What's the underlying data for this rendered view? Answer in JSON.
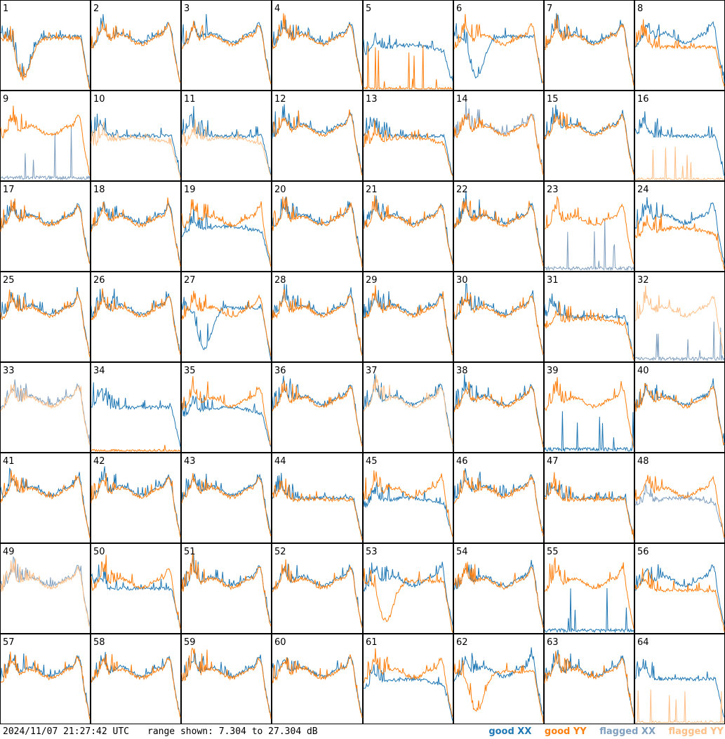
{
  "footer": {
    "timestamp": "2024/11/07 21:27:42 UTC",
    "range": "range shown: 7.304 to 27.304 dB"
  },
  "legend": [
    {
      "label": "good XX",
      "color": "#1f77b4"
    },
    {
      "label": "good YY",
      "color": "#ff7f0e"
    },
    {
      "label": "flagged XX",
      "color": "#7f9fbf"
    },
    {
      "label": "flagged YY",
      "color": "#ffbf87"
    }
  ],
  "chart_data": {
    "type": "line",
    "layout": "small multiples, 8x8 grid",
    "ylim": [
      7.304,
      27.304
    ],
    "yunit": "dB",
    "series_names": [
      "XX",
      "YY"
    ],
    "panels": [
      {
        "id": "1",
        "xx": "good",
        "yy": "good",
        "shape": {
          "xx": "dip",
          "yy": "dip"
        }
      },
      {
        "id": "2",
        "xx": "good",
        "yy": "good",
        "shape": {
          "xx": "normal",
          "yy": "normal"
        }
      },
      {
        "id": "3",
        "xx": "good",
        "yy": "good",
        "shape": {
          "xx": "normal",
          "yy": "normal"
        }
      },
      {
        "id": "4",
        "xx": "good",
        "yy": "good",
        "shape": {
          "xx": "normal",
          "yy": "normal"
        }
      },
      {
        "id": "5",
        "xx": "good",
        "yy": "good",
        "shape": {
          "xx": "low",
          "yy": "dead"
        }
      },
      {
        "id": "6",
        "xx": "good",
        "yy": "good",
        "shape": {
          "xx": "dip",
          "yy": "normal"
        }
      },
      {
        "id": "7",
        "xx": "good",
        "yy": "good",
        "shape": {
          "xx": "normal",
          "yy": "normal"
        }
      },
      {
        "id": "8",
        "xx": "good",
        "yy": "good",
        "shape": {
          "xx": "normal",
          "yy": "flat"
        }
      },
      {
        "id": "9",
        "xx": "flagged",
        "yy": "good",
        "shape": {
          "xx": "dead",
          "yy": "normal"
        }
      },
      {
        "id": "10",
        "xx": "good",
        "yy": "flagged",
        "shape": {
          "xx": "flat",
          "yy": "low"
        }
      },
      {
        "id": "11",
        "xx": "good",
        "yy": "flagged",
        "shape": {
          "xx": "flat",
          "yy": "low"
        }
      },
      {
        "id": "12",
        "xx": "good",
        "yy": "good",
        "shape": {
          "xx": "normal",
          "yy": "normal"
        }
      },
      {
        "id": "13",
        "xx": "good",
        "yy": "good",
        "shape": {
          "xx": "flat",
          "yy": "low"
        }
      },
      {
        "id": "14",
        "xx": "flagged",
        "yy": "good",
        "shape": {
          "xx": "normal",
          "yy": "normal"
        }
      },
      {
        "id": "15",
        "xx": "good",
        "yy": "good",
        "shape": {
          "xx": "normal",
          "yy": "normal"
        }
      },
      {
        "id": "16",
        "xx": "good",
        "yy": "flagged",
        "shape": {
          "xx": "flat",
          "yy": "dead"
        }
      },
      {
        "id": "17",
        "xx": "good",
        "yy": "good",
        "shape": {
          "xx": "normal",
          "yy": "normal"
        }
      },
      {
        "id": "18",
        "xx": "good",
        "yy": "good",
        "shape": {
          "xx": "normal",
          "yy": "normal"
        }
      },
      {
        "id": "19",
        "xx": "good",
        "yy": "good",
        "shape": {
          "xx": "low",
          "yy": "normal"
        }
      },
      {
        "id": "20",
        "xx": "good",
        "yy": "good",
        "shape": {
          "xx": "normal",
          "yy": "normal"
        }
      },
      {
        "id": "21",
        "xx": "good",
        "yy": "good",
        "shape": {
          "xx": "normal",
          "yy": "normal"
        }
      },
      {
        "id": "22",
        "xx": "good",
        "yy": "good",
        "shape": {
          "xx": "normal",
          "yy": "normal"
        }
      },
      {
        "id": "23",
        "xx": "flagged",
        "yy": "good",
        "shape": {
          "xx": "dead",
          "yy": "normal"
        }
      },
      {
        "id": "24",
        "xx": "good",
        "yy": "good",
        "shape": {
          "xx": "normal",
          "yy": "low"
        }
      },
      {
        "id": "25",
        "xx": "good",
        "yy": "good",
        "shape": {
          "xx": "normal",
          "yy": "normal"
        }
      },
      {
        "id": "26",
        "xx": "good",
        "yy": "good",
        "shape": {
          "xx": "normal",
          "yy": "normal"
        }
      },
      {
        "id": "27",
        "xx": "good",
        "yy": "good",
        "shape": {
          "xx": "dip",
          "yy": "normal"
        }
      },
      {
        "id": "28",
        "xx": "good",
        "yy": "good",
        "shape": {
          "xx": "normal",
          "yy": "normal"
        }
      },
      {
        "id": "29",
        "xx": "good",
        "yy": "good",
        "shape": {
          "xx": "normal",
          "yy": "normal"
        }
      },
      {
        "id": "30",
        "xx": "good",
        "yy": "good",
        "shape": {
          "xx": "normal",
          "yy": "normal"
        }
      },
      {
        "id": "31",
        "xx": "good",
        "yy": "good",
        "shape": {
          "xx": "flat",
          "yy": "low"
        }
      },
      {
        "id": "32",
        "xx": "flagged",
        "yy": "flagged",
        "shape": {
          "xx": "dead",
          "yy": "normal"
        }
      },
      {
        "id": "33",
        "xx": "flagged",
        "yy": "flagged",
        "shape": {
          "xx": "normal",
          "yy": "normal"
        }
      },
      {
        "id": "34",
        "xx": "good",
        "yy": "good",
        "shape": {
          "xx": "flat",
          "yy": "dead"
        }
      },
      {
        "id": "35",
        "xx": "good",
        "yy": "good",
        "shape": {
          "xx": "low",
          "yy": "normal"
        }
      },
      {
        "id": "36",
        "xx": "good",
        "yy": "good",
        "shape": {
          "xx": "normal",
          "yy": "normal"
        }
      },
      {
        "id": "37",
        "xx": "good",
        "yy": "flagged",
        "shape": {
          "xx": "normal",
          "yy": "normal"
        }
      },
      {
        "id": "38",
        "xx": "good",
        "yy": "good",
        "shape": {
          "xx": "normal",
          "yy": "normal"
        }
      },
      {
        "id": "39",
        "xx": "good",
        "yy": "good",
        "shape": {
          "xx": "dead",
          "yy": "normal"
        }
      },
      {
        "id": "40",
        "xx": "good",
        "yy": "good",
        "shape": {
          "xx": "normal",
          "yy": "normal"
        }
      },
      {
        "id": "41",
        "xx": "good",
        "yy": "good",
        "shape": {
          "xx": "normal",
          "yy": "normal"
        }
      },
      {
        "id": "42",
        "xx": "good",
        "yy": "good",
        "shape": {
          "xx": "normal",
          "yy": "normal"
        }
      },
      {
        "id": "43",
        "xx": "good",
        "yy": "good",
        "shape": {
          "xx": "normal",
          "yy": "normal"
        }
      },
      {
        "id": "44",
        "xx": "good",
        "yy": "good",
        "shape": {
          "xx": "flat",
          "yy": "flat"
        }
      },
      {
        "id": "45",
        "xx": "good",
        "yy": "good",
        "shape": {
          "xx": "low",
          "yy": "normal"
        }
      },
      {
        "id": "46",
        "xx": "good",
        "yy": "good",
        "shape": {
          "xx": "normal",
          "yy": "normal"
        }
      },
      {
        "id": "47",
        "xx": "good",
        "yy": "good",
        "shape": {
          "xx": "flat",
          "yy": "flat"
        }
      },
      {
        "id": "48",
        "xx": "flagged",
        "yy": "good",
        "shape": {
          "xx": "low",
          "yy": "normal"
        }
      },
      {
        "id": "49",
        "xx": "flagged",
        "yy": "flagged",
        "shape": {
          "xx": "normal",
          "yy": "normal"
        }
      },
      {
        "id": "50",
        "xx": "good",
        "yy": "good",
        "shape": {
          "xx": "flat",
          "yy": "normal"
        }
      },
      {
        "id": "51",
        "xx": "good",
        "yy": "good",
        "shape": {
          "xx": "normal",
          "yy": "normal"
        }
      },
      {
        "id": "52",
        "xx": "good",
        "yy": "good",
        "shape": {
          "xx": "normal",
          "yy": "normal"
        }
      },
      {
        "id": "53",
        "xx": "good",
        "yy": "good",
        "shape": {
          "xx": "normal",
          "yy": "dip"
        }
      },
      {
        "id": "54",
        "xx": "good",
        "yy": "good",
        "shape": {
          "xx": "normal",
          "yy": "normal"
        }
      },
      {
        "id": "55",
        "xx": "good",
        "yy": "good",
        "shape": {
          "xx": "dead",
          "yy": "normal"
        }
      },
      {
        "id": "56",
        "xx": "good",
        "yy": "good",
        "shape": {
          "xx": "normal",
          "yy": "flat"
        }
      },
      {
        "id": "57",
        "xx": "good",
        "yy": "good",
        "shape": {
          "xx": "normal",
          "yy": "normal"
        }
      },
      {
        "id": "58",
        "xx": "good",
        "yy": "good",
        "shape": {
          "xx": "normal",
          "yy": "normal"
        }
      },
      {
        "id": "59",
        "xx": "good",
        "yy": "good",
        "shape": {
          "xx": "normal",
          "yy": "normal"
        }
      },
      {
        "id": "60",
        "xx": "good",
        "yy": "good",
        "shape": {
          "xx": "normal",
          "yy": "normal"
        }
      },
      {
        "id": "61",
        "xx": "good",
        "yy": "good",
        "shape": {
          "xx": "low",
          "yy": "normal"
        }
      },
      {
        "id": "62",
        "xx": "good",
        "yy": "good",
        "shape": {
          "xx": "normal",
          "yy": "dip"
        }
      },
      {
        "id": "63",
        "xx": "good",
        "yy": "good",
        "shape": {
          "xx": "normal",
          "yy": "normal"
        }
      },
      {
        "id": "64",
        "xx": "good",
        "yy": "flagged",
        "shape": {
          "xx": "flat",
          "yy": "dead"
        }
      }
    ]
  }
}
